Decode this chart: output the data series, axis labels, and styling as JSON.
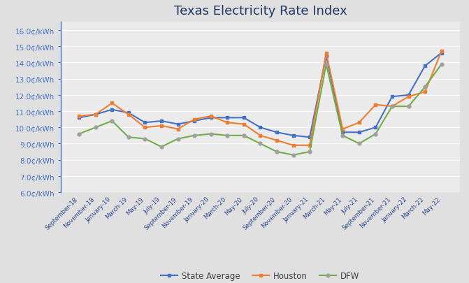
{
  "title": "Texas Electricity Rate Index",
  "title_color": "#1f3864",
  "background_color": "#e0e0e0",
  "plot_background_color": "#ebebeb",
  "grid_color": "#ffffff",
  "ylabel_color": "#4472c4",
  "xlabel_color": "#2e4a8c",
  "ylim": [
    6.0,
    16.5
  ],
  "yticks": [
    6.0,
    7.0,
    8.0,
    9.0,
    10.0,
    11.0,
    12.0,
    13.0,
    14.0,
    15.0,
    16.0
  ],
  "x_labels": [
    "September-18",
    "November-18",
    "January-19",
    "March-19",
    "May-19",
    "July-19",
    "September-19",
    "November-19",
    "January-20",
    "March-20",
    "May-20",
    "July-20",
    "September-20",
    "November-20",
    "January-21",
    "March-21",
    "May-21",
    "July-21",
    "September-21",
    "November-21",
    "January-22",
    "March-22",
    "May-22"
  ],
  "state_avg": [
    10.6,
    10.8,
    11.1,
    10.9,
    10.3,
    10.4,
    10.2,
    10.4,
    10.6,
    10.6,
    10.6,
    10.0,
    9.7,
    9.5,
    9.4,
    14.4,
    9.7,
    9.7,
    10.0,
    11.9,
    12.0,
    13.8,
    14.6
  ],
  "houston": [
    10.7,
    10.8,
    11.5,
    10.8,
    10.0,
    10.1,
    9.9,
    10.5,
    10.7,
    10.3,
    10.2,
    9.5,
    9.2,
    8.9,
    8.9,
    14.6,
    9.9,
    10.3,
    11.4,
    11.3,
    11.9,
    12.2,
    14.7
  ],
  "dfw": [
    9.6,
    10.0,
    10.4,
    9.4,
    9.3,
    8.8,
    9.3,
    9.5,
    9.6,
    9.5,
    9.5,
    9.0,
    8.5,
    8.3,
    8.5,
    13.9,
    9.5,
    9.0,
    9.6,
    11.3,
    11.3,
    12.5,
    13.9
  ],
  "state_avg_color": "#4472c4",
  "houston_color": "#ed7d31",
  "dfw_color": "#70ad47",
  "dfw_marker_color": "#a0a0a0",
  "legend_labels": [
    "State Average",
    "Houston",
    "DFW"
  ]
}
